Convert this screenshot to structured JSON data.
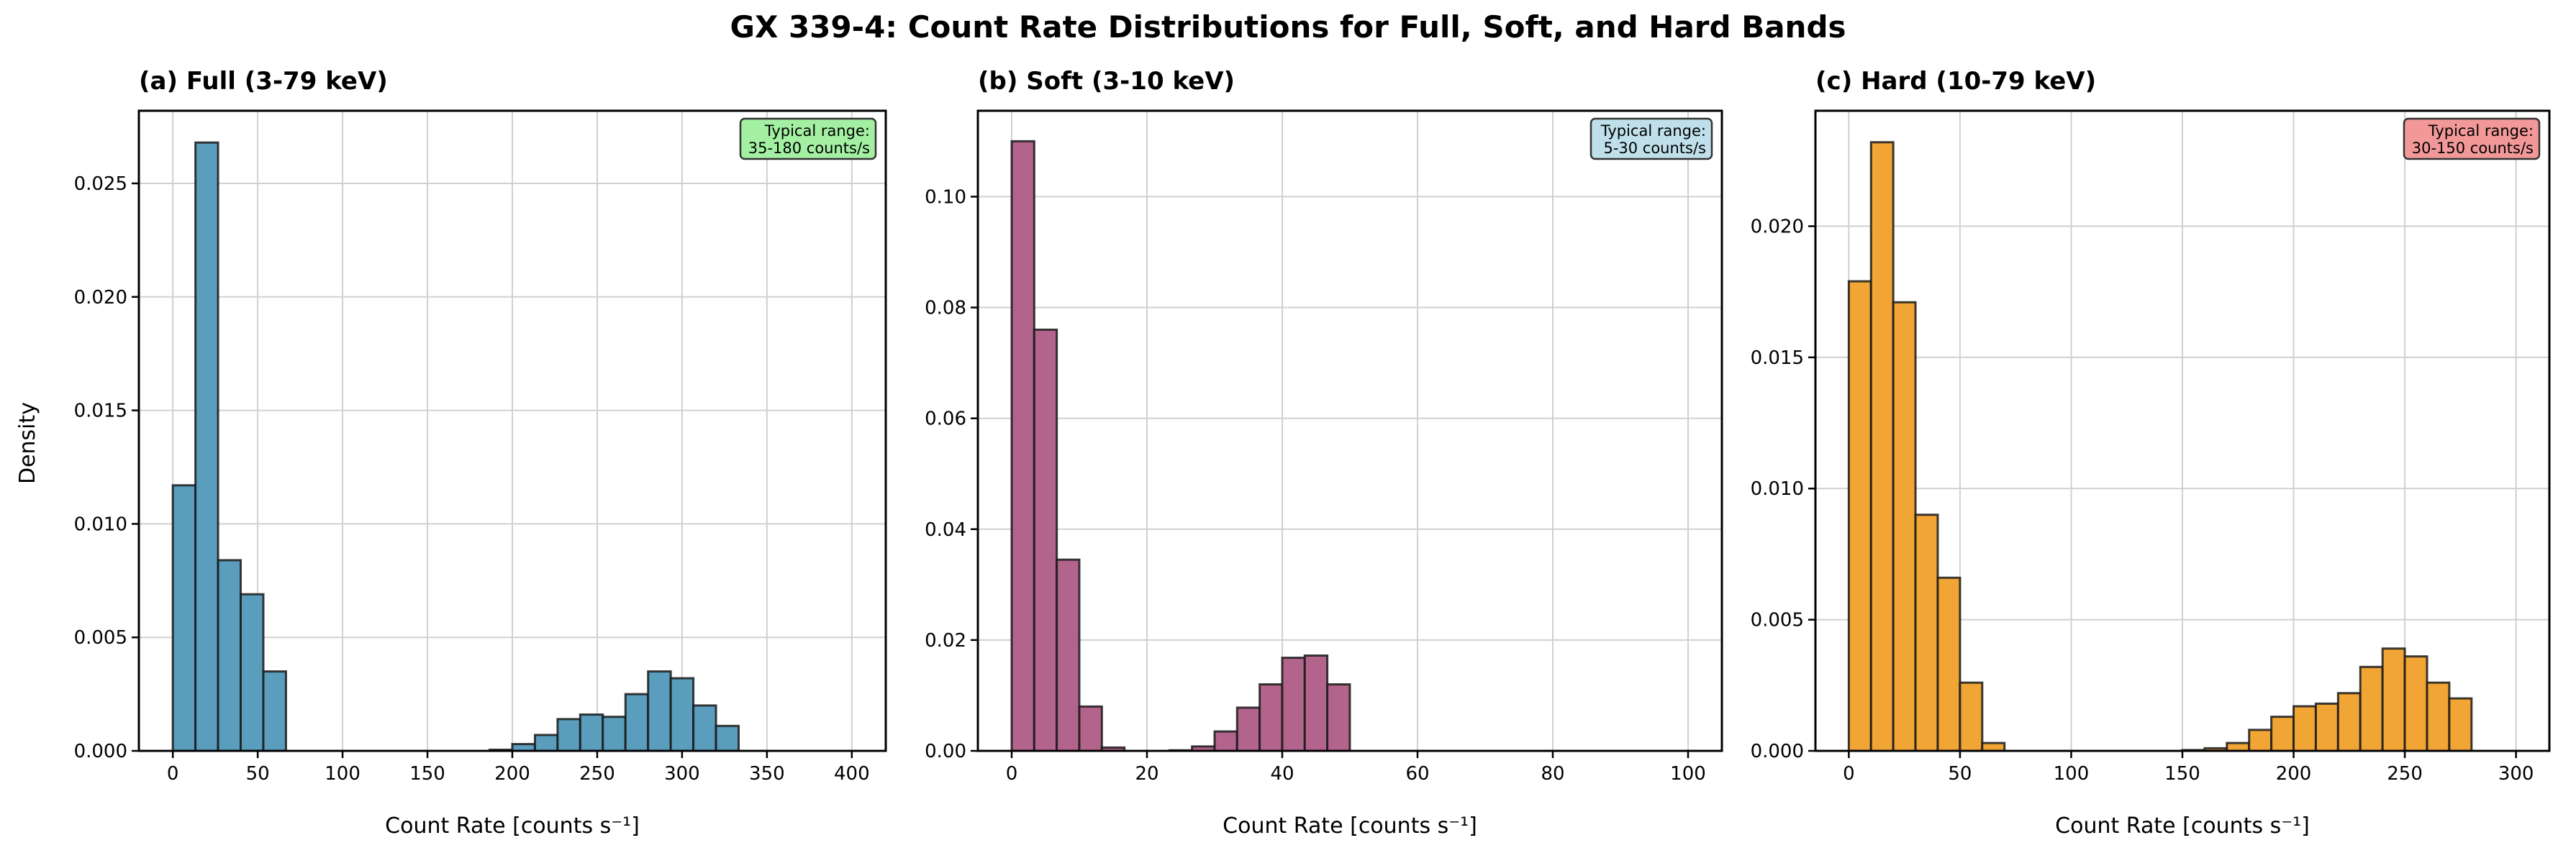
{
  "suptitle": "GX 339-4: Count Rate Distributions for Full, Soft, and Hard Bands",
  "ylabel": "Density",
  "chart_data": [
    {
      "type": "bar",
      "title": "(a) Full (3-79 keV)",
      "xlabel": "Count Rate [counts s⁻¹]",
      "ylabel": "Density",
      "color": "#5a9dbd",
      "annotation": [
        "Typical range:",
        "35-180 counts/s"
      ],
      "annotation_color": "#a3f0a3",
      "bin_start": 0,
      "bin_width": 13.333,
      "values": [
        0.0117,
        0.0268,
        0.0084,
        0.0069,
        0.0035,
        0,
        0,
        0,
        0,
        0,
        0,
        0,
        0,
        0,
        5e-05,
        0.0003,
        0.0007,
        0.0014,
        0.0016,
        0.0015,
        0.0025,
        0.0035,
        0.0032,
        0.002,
        0.0011
      ],
      "xlim": [
        -20,
        420
      ],
      "ylim": [
        0,
        0.0282
      ],
      "xticks": [
        "0",
        "50",
        "100",
        "150",
        "200",
        "250",
        "300",
        "350",
        "400"
      ],
      "xtick_values": [
        0,
        50,
        100,
        150,
        200,
        250,
        300,
        350,
        400
      ],
      "yticks": [
        "0.000",
        "0.005",
        "0.010",
        "0.015",
        "0.020",
        "0.025"
      ],
      "ytick_values": [
        0,
        0.005,
        0.01,
        0.015,
        0.02,
        0.025
      ],
      "grid": true
    },
    {
      "type": "bar",
      "title": "(b) Soft (3-10 keV)",
      "xlabel": "Count Rate [counts s⁻¹]",
      "color": "#b3648c",
      "annotation": [
        "Typical range:",
        "5-30 counts/s"
      ],
      "annotation_color": "#bfe0eb",
      "bin_start": 0,
      "bin_width": 3.333,
      "values": [
        0.11,
        0.076,
        0.0345,
        0.008,
        0.0006,
        0,
        0,
        0.0001,
        0.0008,
        0.0035,
        0.0078,
        0.012,
        0.0168,
        0.0172,
        0.012
      ],
      "xlim": [
        -5,
        105
      ],
      "ylim": [
        0,
        0.1155
      ],
      "xticks": [
        "0",
        "20",
        "40",
        "60",
        "80",
        "100"
      ],
      "xtick_values": [
        0,
        20,
        40,
        60,
        80,
        100
      ],
      "yticks": [
        "0.00",
        "0.02",
        "0.04",
        "0.06",
        "0.08",
        "0.10"
      ],
      "ytick_values": [
        0,
        0.02,
        0.04,
        0.06,
        0.08,
        0.1
      ],
      "grid": true
    },
    {
      "type": "bar",
      "title": "(c) Hard (10-79 keV)",
      "xlabel": "Count Rate [counts s⁻¹]",
      "color": "#f0a535",
      "annotation": [
        "Typical range:",
        "30-150 counts/s"
      ],
      "annotation_color": "#f29898",
      "bin_start": 0,
      "bin_width": 10,
      "values": [
        0.0179,
        0.0232,
        0.0171,
        0.009,
        0.0066,
        0.0026,
        0.0003,
        0,
        0,
        0,
        0,
        0,
        0,
        0,
        0,
        3e-05,
        0.0001,
        0.0003,
        0.0008,
        0.0013,
        0.0017,
        0.0018,
        0.0022,
        0.0032,
        0.0039,
        0.0036,
        0.0026,
        0.002
      ],
      "xlim": [
        -15,
        315
      ],
      "ylim": [
        0,
        0.0244
      ],
      "xticks": [
        "0",
        "50",
        "100",
        "150",
        "200",
        "250",
        "300"
      ],
      "xtick_values": [
        0,
        50,
        100,
        150,
        200,
        250,
        300
      ],
      "yticks": [
        "0.000",
        "0.005",
        "0.010",
        "0.015",
        "0.020"
      ],
      "ytick_values": [
        0,
        0.005,
        0.01,
        0.015,
        0.02
      ],
      "grid": true
    }
  ]
}
